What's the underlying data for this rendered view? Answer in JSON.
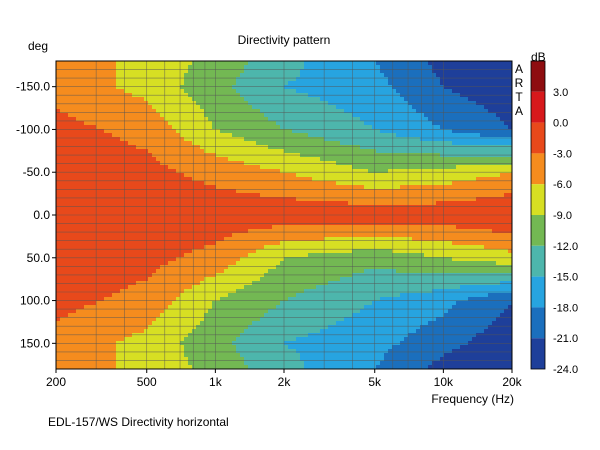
{
  "chart_data": {
    "type": "heatmap",
    "title": "Directivity pattern",
    "ylabel": "deg",
    "xlabel": "Frequency (Hz)",
    "caption": "EDL-157/WS Directivity horizontal",
    "watermark_vertical": "ARTA",
    "colorbar_label": "dB",
    "x_scale": "log",
    "xlim": [
      200,
      20000
    ],
    "ylim": [
      180,
      -180
    ],
    "x_ticks": [
      200,
      500,
      1000,
      2000,
      5000,
      10000,
      20000
    ],
    "x_tick_labels": [
      "200",
      "500",
      "1k",
      "2k",
      "5k",
      "10k",
      "20k"
    ],
    "y_ticks": [
      -150,
      -100,
      -50,
      0,
      50,
      100,
      150
    ],
    "y_tick_labels": [
      "-150.0",
      "-100.0",
      "-50.0",
      "0.0",
      "50.0",
      "100.0",
      "150.0"
    ],
    "grid": true,
    "colorbar": {
      "ticks": [
        3,
        0,
        -3,
        -6,
        -9,
        -12,
        -15,
        -18,
        -21,
        -24
      ],
      "tick_labels": [
        "3.0",
        "0.0",
        "-3.0",
        "-6.0",
        "-9.0",
        "-12.0",
        "-15.0",
        "-18.0",
        "-21.0",
        "-24.0"
      ],
      "bands": [
        {
          "from": 6,
          "to": 3,
          "color": "#8e0d10"
        },
        {
          "from": 3,
          "to": 0,
          "color": "#d7191c"
        },
        {
          "from": 0,
          "to": -3,
          "color": "#e8491b"
        },
        {
          "from": -3,
          "to": -6,
          "color": "#f58c1e"
        },
        {
          "from": -6,
          "to": -9,
          "color": "#d7df23"
        },
        {
          "from": -9,
          "to": -12,
          "color": "#73b853"
        },
        {
          "from": -12,
          "to": -15,
          "color": "#4db6ac"
        },
        {
          "from": -15,
          "to": -18,
          "color": "#27a4e0"
        },
        {
          "from": -18,
          "to": -21,
          "color": "#1b6fbd"
        },
        {
          "from": -21,
          "to": -24,
          "color": "#1e3f9a"
        }
      ]
    },
    "approximate_levels_db": {
      "frequencies_hz": [
        200,
        500,
        1000,
        2000,
        5000,
        10000,
        20000
      ],
      "angles_deg": [
        -180,
        -150,
        -100,
        -50,
        0,
        50,
        100,
        150,
        180
      ],
      "rows": [
        [
          -4,
          -7,
          -10,
          -14,
          -18,
          -22,
          -24
        ],
        [
          -4,
          -7,
          -11,
          -15,
          -17,
          -21,
          -23
        ],
        [
          -2,
          -4,
          -9,
          -12,
          -15,
          -18,
          -21
        ],
        [
          -1,
          -2,
          -4,
          -6,
          -9,
          -8,
          -6
        ],
        [
          -1,
          -1,
          -1,
          -1,
          -1,
          -1,
          0
        ],
        [
          -1,
          -2,
          -4,
          -9,
          -11,
          -9,
          -7
        ],
        [
          -2,
          -4,
          -9,
          -12,
          -15,
          -17,
          -21
        ],
        [
          -4,
          -7,
          -11,
          -15,
          -17,
          -20,
          -23
        ],
        [
          -4,
          -7,
          -10,
          -14,
          -18,
          -22,
          -24
        ]
      ]
    }
  }
}
